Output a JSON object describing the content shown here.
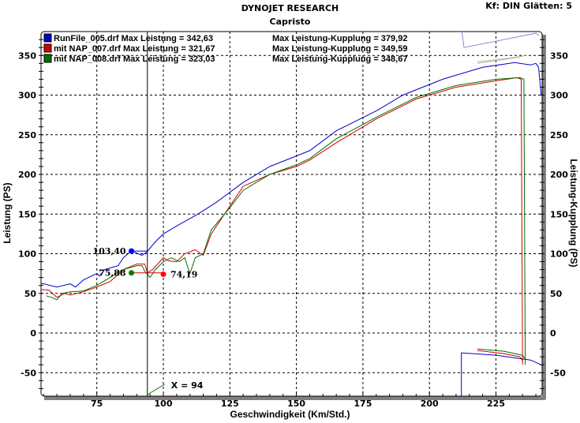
{
  "header": {
    "title": "DYNOJET RESEARCH",
    "subtitle": "Capristo",
    "info": "Kf: DIN  Glätten: 5"
  },
  "chart_data": {
    "type": "line",
    "title": "DYNOJET RESEARCH",
    "subtitle": "Capristo",
    "xlabel": "Geschwindigkeit (Km/Std.)",
    "ylabel": "Leistung (PS)",
    "y2label": "Leistung-Kupplung (PS)",
    "xlim": [
      54,
      242
    ],
    "ylim": [
      -80,
      380
    ],
    "xticks": [
      75,
      100,
      125,
      150,
      175,
      200,
      225
    ],
    "yticks": [
      -50,
      0,
      50,
      100,
      150,
      200,
      250,
      300,
      350
    ],
    "grid": true,
    "legend_position": "top-left",
    "series": [
      {
        "name": "RunFile_005.drf",
        "legend": "RunFile_005.drf Max Leistung = 342,63",
        "legend2": "Max Leistung-Kupplung = 379,92",
        "color": "#0000c8",
        "points": [
          [
            54,
            63
          ],
          [
            60,
            58
          ],
          [
            65,
            62
          ],
          [
            67,
            58
          ],
          [
            70,
            67
          ],
          [
            75,
            75
          ],
          [
            76,
            72
          ],
          [
            78,
            80
          ],
          [
            83,
            85
          ],
          [
            85,
            95
          ],
          [
            88,
            103.4
          ],
          [
            92,
            98
          ],
          [
            94,
            103
          ],
          [
            97,
            115
          ],
          [
            100,
            125
          ],
          [
            105,
            135
          ],
          [
            113,
            150
          ],
          [
            120,
            165
          ],
          [
            130,
            190
          ],
          [
            140,
            210
          ],
          [
            155,
            230
          ],
          [
            165,
            255
          ],
          [
            180,
            280
          ],
          [
            190,
            300
          ],
          [
            205,
            320
          ],
          [
            220,
            335
          ],
          [
            232,
            341
          ],
          [
            238,
            338
          ],
          [
            240,
            340
          ],
          [
            241,
            335
          ],
          [
            242,
            300
          ]
        ],
        "tail": [
          [
            212,
            -80
          ],
          [
            212,
            -25
          ],
          [
            225,
            -28
          ],
          [
            238,
            -34
          ],
          [
            242,
            -40
          ]
        ],
        "clutch": [
          [
            212,
            385
          ],
          [
            213,
            360
          ],
          [
            225,
            368
          ],
          [
            240,
            378
          ],
          [
            241,
            375
          ]
        ],
        "clutch_color": "#8888dd"
      },
      {
        "name": "mit NAP_007.drf",
        "legend": "mit NAP_007.drf Max Leistung = 321,67",
        "legend2": "Max Leistung-Kupplung = 349,59",
        "color": "#d00000",
        "points": [
          [
            54,
            55
          ],
          [
            57,
            54
          ],
          [
            60,
            45
          ],
          [
            63,
            50
          ],
          [
            65,
            48
          ],
          [
            70,
            52
          ],
          [
            75,
            58
          ],
          [
            80,
            65
          ],
          [
            85,
            80
          ],
          [
            90,
            87
          ],
          [
            93,
            87
          ],
          [
            94,
            76
          ],
          [
            96,
            80
          ],
          [
            100,
            95
          ],
          [
            102,
            91
          ],
          [
            105,
            90
          ],
          [
            108,
            100
          ],
          [
            112,
            105
          ],
          [
            115,
            98
          ],
          [
            118,
            125
          ],
          [
            125,
            160
          ],
          [
            130,
            185
          ],
          [
            140,
            200
          ],
          [
            150,
            210
          ],
          [
            155,
            218
          ],
          [
            165,
            240
          ],
          [
            180,
            270
          ],
          [
            195,
            295
          ],
          [
            210,
            310
          ],
          [
            225,
            318
          ],
          [
            233,
            322
          ],
          [
            234.5,
            320
          ],
          [
            235,
            -40
          ]
        ],
        "tail": [
          [
            218,
            -22
          ],
          [
            228,
            -26
          ],
          [
            234,
            -30
          ],
          [
            235,
            -35
          ]
        ],
        "clutch": [
          [
            218,
            340
          ],
          [
            226,
            344
          ],
          [
            234,
            348
          ],
          [
            235,
            350
          ]
        ],
        "clutch_color": "#d8a0a0"
      },
      {
        "name": "mit NAP_008.drf",
        "legend": "mit NAP_008.drf Max Leistung = 323,03",
        "legend2": "Max Leistung-Kupplung = 348,67",
        "color": "#007000",
        "points": [
          [
            56,
            47
          ],
          [
            58,
            45
          ],
          [
            60,
            42
          ],
          [
            62,
            50
          ],
          [
            65,
            52
          ],
          [
            70,
            53
          ],
          [
            75,
            60
          ],
          [
            80,
            70
          ],
          [
            85,
            80
          ],
          [
            88,
            83
          ],
          [
            90,
            85
          ],
          [
            92,
            85
          ],
          [
            93,
            78
          ],
          [
            95,
            70
          ],
          [
            97,
            80
          ],
          [
            100,
            90
          ],
          [
            103,
            95
          ],
          [
            106,
            90
          ],
          [
            108,
            95
          ],
          [
            110,
            75
          ],
          [
            112,
            95
          ],
          [
            115,
            100
          ],
          [
            118,
            130
          ],
          [
            125,
            158
          ],
          [
            130,
            180
          ],
          [
            140,
            200
          ],
          [
            150,
            212
          ],
          [
            155,
            220
          ],
          [
            165,
            245
          ],
          [
            180,
            272
          ],
          [
            195,
            297
          ],
          [
            210,
            312
          ],
          [
            225,
            320
          ],
          [
            234,
            322
          ],
          [
            235.5,
            320
          ],
          [
            236,
            -40
          ]
        ],
        "tail": [
          [
            218,
            -20
          ],
          [
            228,
            -23
          ],
          [
            235,
            -28
          ],
          [
            236,
            -33
          ]
        ],
        "clutch": [
          [
            218,
            342
          ],
          [
            226,
            345
          ],
          [
            235,
            349
          ],
          [
            236,
            350
          ]
        ],
        "clutch_color": "#a0c8a0"
      }
    ],
    "cursor": {
      "x": 94,
      "label": "X = 94"
    },
    "annotations": [
      {
        "text": "103,40",
        "x": 88,
        "y": 103.4,
        "color": "#0000ff"
      },
      {
        "text": "75,88",
        "x": 88,
        "y": 75.88,
        "color": "#008000"
      },
      {
        "text": "74,19",
        "x": 100,
        "y": 74.19,
        "color": "#ff0000"
      }
    ]
  }
}
